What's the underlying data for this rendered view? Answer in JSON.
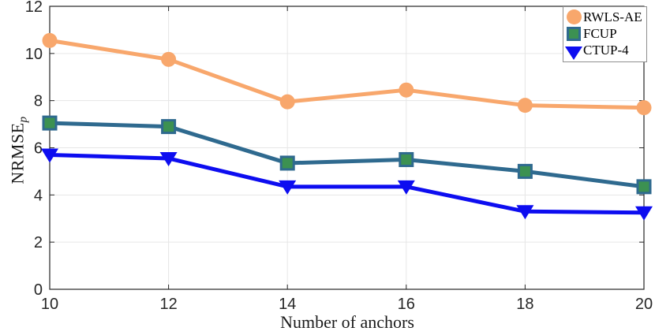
{
  "chart_data": {
    "type": "line",
    "x": [
      10,
      12,
      14,
      16,
      18,
      20
    ],
    "series": [
      {
        "name": "RWLS-AE",
        "values": [
          10.55,
          9.75,
          7.95,
          8.45,
          7.8,
          7.7
        ],
        "color": "#F8A76C",
        "marker": "circle",
        "marker_fill": "#F8A76C"
      },
      {
        "name": "FCUP",
        "values": [
          7.05,
          6.9,
          5.35,
          5.5,
          5.0,
          4.35
        ],
        "color": "#2F6A8F",
        "marker": "square",
        "marker_fill": "#3C9151"
      },
      {
        "name": "CTUP-4",
        "values": [
          5.7,
          5.55,
          4.35,
          4.35,
          3.3,
          3.25
        ],
        "color": "#0D0DF0",
        "marker": "triangle-down",
        "marker_fill": "#0D0DF0"
      }
    ],
    "title": "",
    "xlabel": "Number of anchors",
    "ylabel": "NRMSE",
    "ylabel_subscript": "p",
    "xticks": [
      10,
      12,
      14,
      16,
      18,
      20
    ],
    "yticks": [
      0,
      2,
      4,
      6,
      8,
      10,
      12
    ],
    "xlim": [
      10,
      20
    ],
    "ylim": [
      0,
      12
    ],
    "grid": true,
    "legend_position": "top-right"
  },
  "style": {
    "axis_color": "#262626",
    "grid_color": "#E6E6E6",
    "legend_border_color": "#8F8F8F",
    "line_width": 5
  }
}
